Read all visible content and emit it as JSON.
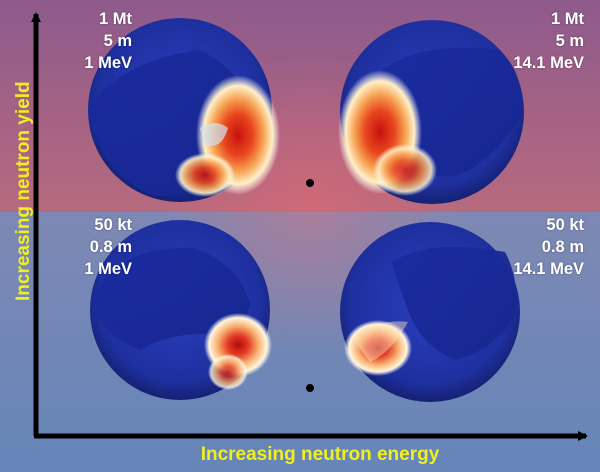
{
  "panels": [
    {
      "yield": "1 Mt",
      "radius": "5 m",
      "energy": "1 MeV"
    },
    {
      "yield": "1 Mt",
      "radius": "5 m",
      "energy": "14.1 MeV"
    },
    {
      "yield": "50 kt",
      "radius": "0.8 m",
      "energy": "1 MeV"
    },
    {
      "yield": "50 kt",
      "radius": "0.8 m",
      "energy": "14.1 MeV"
    }
  ],
  "axes": {
    "x_title": "Increasing neutron energy",
    "y_title": "Increasing neutron yield"
  },
  "colors": {
    "top_background": "#9b5f8a",
    "bottom_background": "#6f86b8",
    "sphere_blue": "#1c2fa8",
    "hot_red": "#e0221a",
    "axis_title_yellow": "#f0f01e"
  }
}
